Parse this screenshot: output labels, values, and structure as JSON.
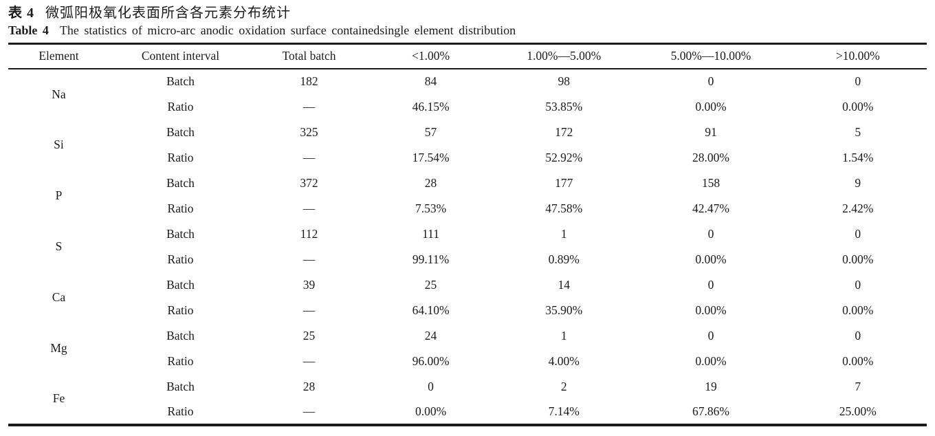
{
  "page": {
    "title_zh_label": "表 4",
    "title_zh_text": "微弧阳极氧化表面所含各元素分布统计",
    "title_en_label": "Table 4",
    "title_en_text": "The statistics of micro-arc anodic oxidation surface containedsingle element distribution"
  },
  "table": {
    "columns": [
      "Element",
      "Content interval",
      "Total batch",
      "<1.00%",
      "1.00%—5.00%",
      "5.00%—10.00%",
      ">10.00%"
    ],
    "row_labels": {
      "batch": "Batch",
      "ratio": "Ratio"
    },
    "groups": [
      {
        "element": "Na",
        "batch": [
          "182",
          "84",
          "98",
          "0",
          "0"
        ],
        "ratio": [
          "—",
          "46.15%",
          "53.85%",
          "0.00%",
          "0.00%"
        ]
      },
      {
        "element": "Si",
        "batch": [
          "325",
          "57",
          "172",
          "91",
          "5"
        ],
        "ratio": [
          "—",
          "17.54%",
          "52.92%",
          "28.00%",
          "1.54%"
        ]
      },
      {
        "element": "P",
        "batch": [
          "372",
          "28",
          "177",
          "158",
          "9"
        ],
        "ratio": [
          "—",
          "7.53%",
          "47.58%",
          "42.47%",
          "2.42%"
        ]
      },
      {
        "element": "S",
        "batch": [
          "112",
          "111",
          "1",
          "0",
          "0"
        ],
        "ratio": [
          "—",
          "99.11%",
          "0.89%",
          "0.00%",
          "0.00%"
        ]
      },
      {
        "element": "Ca",
        "batch": [
          "39",
          "25",
          "14",
          "0",
          "0"
        ],
        "ratio": [
          "—",
          "64.10%",
          "35.90%",
          "0.00%",
          "0.00%"
        ]
      },
      {
        "element": "Mg",
        "batch": [
          "25",
          "24",
          "1",
          "0",
          "0"
        ],
        "ratio": [
          "—",
          "96.00%",
          "4.00%",
          "0.00%",
          "0.00%"
        ]
      },
      {
        "element": "Fe",
        "batch": [
          "28",
          "0",
          "2",
          "19",
          "7"
        ],
        "ratio": [
          "—",
          "0.00%",
          "7.14%",
          "67.86%",
          "25.00%"
        ]
      }
    ]
  }
}
